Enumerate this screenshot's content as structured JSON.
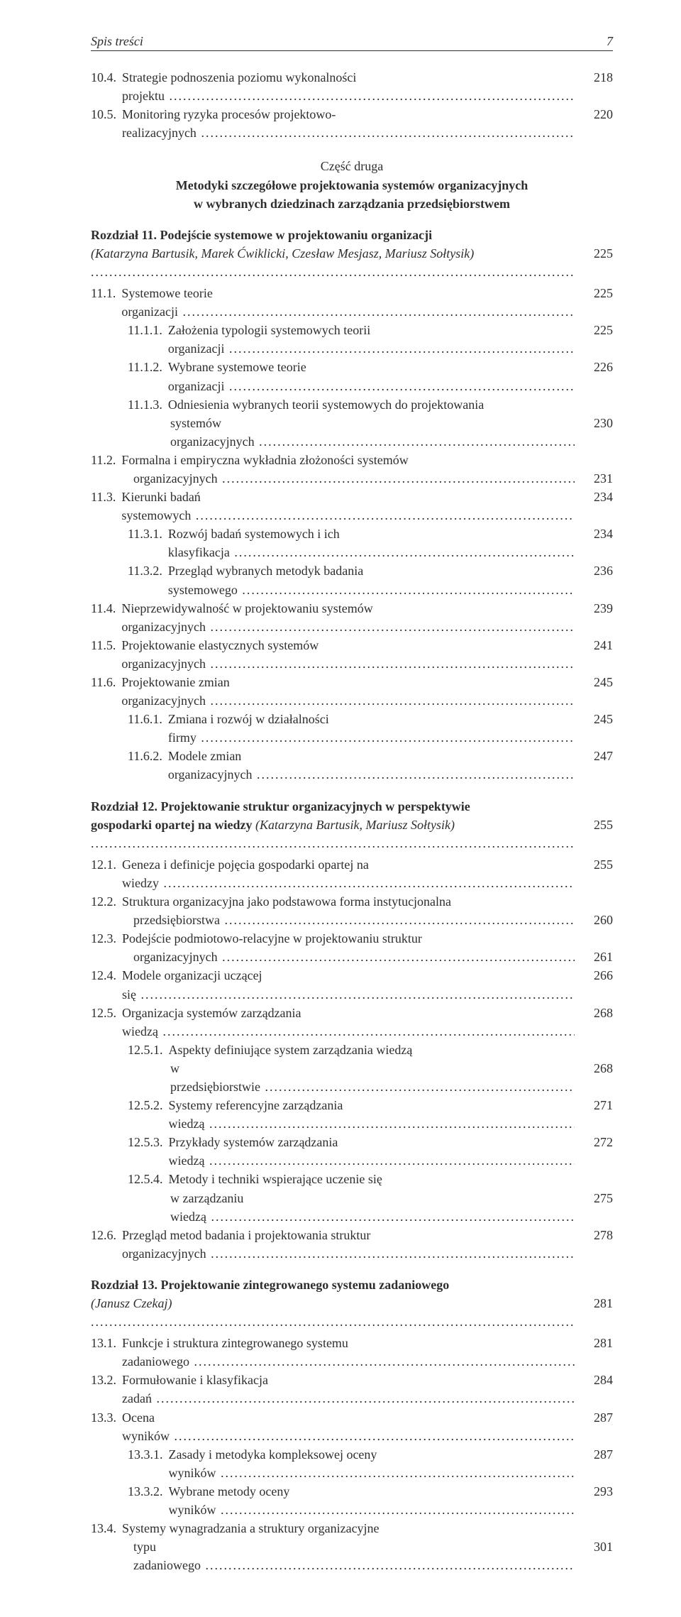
{
  "running_head": {
    "title": "Spis treści",
    "page": "7"
  },
  "part": {
    "label": "Część druga",
    "title_line1": "Metodyki szczegółowe projektowania systemów organizacyjnych",
    "title_line2": "w wybranych dziedzinach zarządzania przedsiębiorstwem"
  },
  "pre_part": [
    {
      "num": "10.4.",
      "text": "Strategie podnoszenia poziomu wykonalności projektu",
      "page": "218",
      "indent": 1
    },
    {
      "num": "10.5.",
      "text": "Monitoring ryzyka procesów projektowo-realizacyjnych",
      "page": "220",
      "indent": 1
    }
  ],
  "ch11": {
    "heading_prefix": "Rozdział 11. ",
    "heading_text": "Podejście systemowe w projektowaniu organizacji",
    "authors": "(Katarzyna Bartusik, Marek Ćwiklicki, Czesław Mesjasz, Mariusz Sołtysik)",
    "page": "225",
    "items": [
      {
        "num": "11.1.",
        "text": "Systemowe teorie organizacji",
        "page": "225",
        "indent": 1
      },
      {
        "num": "11.1.1.",
        "text": "Założenia typologii systemowych teorii organizacji",
        "page": "225",
        "indent": 2
      },
      {
        "num": "11.1.2.",
        "text": "Wybrane systemowe teorie organizacji",
        "page": "226",
        "indent": 2
      },
      {
        "num": "11.1.3.",
        "text": "Odniesienia wybranych teorii systemowych do projektowania",
        "cont": "systemów organizacyjnych",
        "page": "230",
        "indent": 2
      },
      {
        "num": "11.2.",
        "text": "Formalna i empiryczna wykładnia złożoności systemów",
        "cont": "organizacyjnych",
        "page": "231",
        "indent": 1
      },
      {
        "num": "11.3.",
        "text": "Kierunki badań systemowych",
        "page": "234",
        "indent": 1
      },
      {
        "num": "11.3.1.",
        "text": "Rozwój badań systemowych i ich klasyfikacja",
        "page": "234",
        "indent": 2
      },
      {
        "num": "11.3.2.",
        "text": "Przegląd wybranych metodyk badania systemowego",
        "page": "236",
        "indent": 2
      },
      {
        "num": "11.4.",
        "text": "Nieprzewidywalność w projektowaniu systemów organizacyjnych",
        "page": "239",
        "indent": 1
      },
      {
        "num": "11.5.",
        "text": "Projektowanie elastycznych systemów organizacyjnych",
        "page": "241",
        "indent": 1
      },
      {
        "num": "11.6.",
        "text": "Projektowanie zmian organizacyjnych",
        "page": "245",
        "indent": 1
      },
      {
        "num": "11.6.1.",
        "text": "Zmiana i rozwój w działalności firmy",
        "page": "245",
        "indent": 2
      },
      {
        "num": "11.6.2.",
        "text": "Modele zmian organizacyjnych",
        "page": "247",
        "indent": 2
      }
    ]
  },
  "ch12": {
    "heading_prefix": "Rozdział 12. ",
    "heading_line1": "Projektowanie struktur organizacyjnych w perspektywie",
    "heading_line2_pre": "gospodarki opartej na wiedzy ",
    "authors": "(Katarzyna Bartusik, Mariusz Sołtysik)",
    "page": "255",
    "items": [
      {
        "num": "12.1.",
        "text": "Geneza i definicje pojęcia gospodarki opartej na wiedzy",
        "page": "255",
        "indent": 1
      },
      {
        "num": "12.2.",
        "text": "Struktura organizacyjna jako podstawowa forma instytucjonalna",
        "cont": "przedsiębiorstwa",
        "page": "260",
        "indent": 1
      },
      {
        "num": "12.3.",
        "text": "Podejście podmiotowo-relacyjne w projektowaniu struktur",
        "cont": "organizacyjnych",
        "page": "261",
        "indent": 1
      },
      {
        "num": "12.4.",
        "text": "Modele organizacji uczącej się",
        "page": "266",
        "indent": 1
      },
      {
        "num": "12.5.",
        "text": "Organizacja systemów zarządzania wiedzą",
        "page": "268",
        "indent": 1
      },
      {
        "num": "12.5.1.",
        "text": "Aspekty definiujące system zarządzania wiedzą",
        "cont": "w przedsiębiorstwie",
        "page": "268",
        "indent": 2
      },
      {
        "num": "12.5.2.",
        "text": "Systemy referencyjne zarządzania wiedzą",
        "page": "271",
        "indent": 2
      },
      {
        "num": "12.5.3.",
        "text": "Przykłady systemów zarządzania wiedzą",
        "page": "272",
        "indent": 2
      },
      {
        "num": "12.5.4.",
        "text": "Metody i techniki wspierające uczenie się",
        "cont": "w zarządzaniu wiedzą",
        "page": "275",
        "indent": 2
      },
      {
        "num": "12.6.",
        "text": "Przegląd metod badania i projektowania struktur organizacyjnych",
        "page": "278",
        "indent": 1
      }
    ]
  },
  "ch13": {
    "heading_prefix": "Rozdział 13. ",
    "heading_text": "Projektowanie zintegrowanego systemu zadaniowego",
    "authors": "(Janusz Czekaj)",
    "page": "281",
    "items": [
      {
        "num": "13.1.",
        "text": "Funkcje i struktura zintegrowanego systemu zadaniowego",
        "page": "281",
        "indent": 1
      },
      {
        "num": "13.2.",
        "text": "Formułowanie i klasyfikacja zadań",
        "page": "284",
        "indent": 1
      },
      {
        "num": "13.3.",
        "text": "Ocena wyników",
        "page": "287",
        "indent": 1
      },
      {
        "num": "13.3.1.",
        "text": "Zasady i metodyka kompleksowej oceny wyników",
        "page": "287",
        "indent": 2
      },
      {
        "num": "13.3.2.",
        "text": "Wybrane metody oceny wyników",
        "page": "293",
        "indent": 2
      },
      {
        "num": "13.4.",
        "text": "Systemy wynagradzania a struktury organizacyjne",
        "cont": "typu zadaniowego",
        "page": "301",
        "indent": 1
      }
    ]
  }
}
